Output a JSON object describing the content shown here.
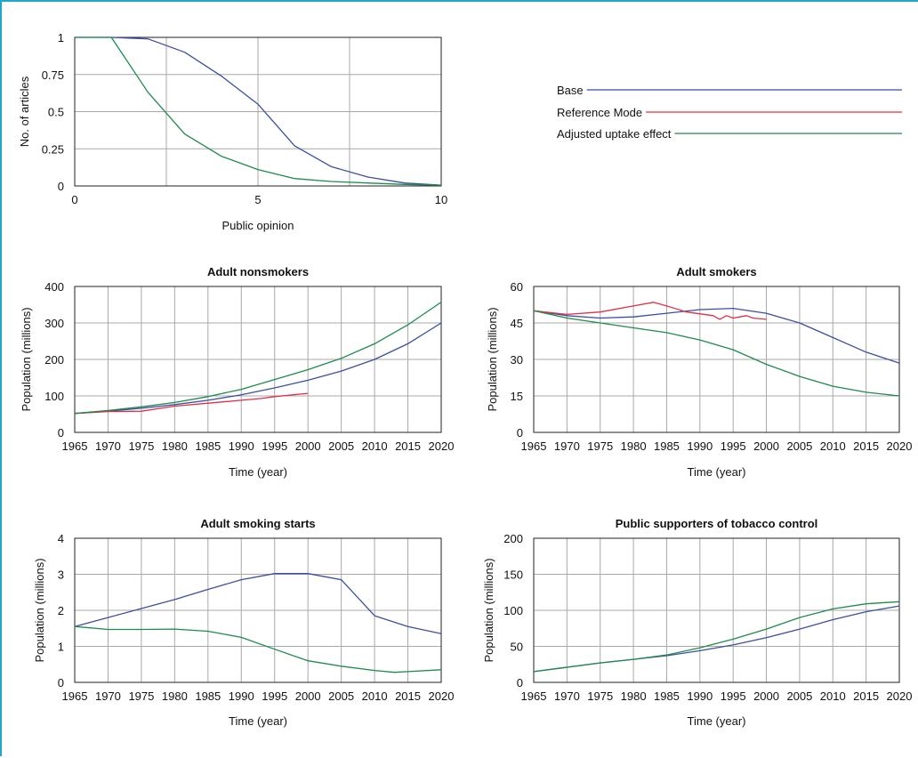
{
  "legend": [
    {
      "label": "Base",
      "color": "#3b4fa0"
    },
    {
      "label": "Reference Mode",
      "color": "#e03048"
    },
    {
      "label": "Adjusted uptake effect",
      "color": "#1f8a4c"
    }
  ],
  "chart_data": [
    {
      "id": "opinion",
      "type": "line",
      "title": "",
      "xlabel": "Public opinion",
      "ylabel": "No. of articles",
      "xlim": [
        0,
        10
      ],
      "ylim": [
        0,
        1
      ],
      "xticks": [
        0,
        5,
        10
      ],
      "xgrid": [
        0,
        2.5,
        5,
        7.5,
        10
      ],
      "yticks": [
        0,
        0.25,
        0.5,
        0.75,
        1
      ],
      "ytick_labels": [
        "0",
        "0.25",
        "0.5",
        "0.75",
        "1"
      ],
      "grid": true,
      "series": [
        {
          "key": "base",
          "x": [
            0,
            1,
            2,
            3,
            4,
            5,
            6,
            7,
            8,
            9,
            10
          ],
          "y": [
            1,
            1,
            0.99,
            0.9,
            0.74,
            0.55,
            0.27,
            0.13,
            0.06,
            0.02,
            0.005
          ]
        },
        {
          "key": "adjusted",
          "x": [
            0,
            1,
            2,
            3,
            4,
            5,
            6,
            7,
            8,
            9,
            10
          ],
          "y": [
            1,
            1,
            0.63,
            0.35,
            0.2,
            0.11,
            0.05,
            0.03,
            0.02,
            0.01,
            0.005
          ]
        }
      ]
    },
    {
      "id": "nonsmokers",
      "type": "line",
      "title": "Adult nonsmokers",
      "xlabel": "Time (year)",
      "ylabel": "Population (millions)",
      "xlim": [
        1965,
        2020
      ],
      "ylim": [
        0,
        400
      ],
      "xticks": [
        1965,
        1970,
        1975,
        1980,
        1985,
        1990,
        1995,
        2000,
        2005,
        2010,
        2015,
        2020
      ],
      "yticks": [
        0,
        100,
        200,
        300,
        400
      ],
      "ytick_labels": [
        "0",
        "100",
        "200",
        "300",
        "400"
      ],
      "grid": true,
      "series": [
        {
          "key": "base",
          "x": [
            1965,
            1970,
            1975,
            1980,
            1985,
            1990,
            1995,
            2000,
            2005,
            2010,
            2015,
            2020
          ],
          "y": [
            52,
            58,
            66,
            76,
            88,
            103,
            122,
            143,
            168,
            200,
            243,
            300
          ]
        },
        {
          "key": "reference",
          "x": [
            1965,
            1970,
            1975,
            1980,
            1985,
            1990,
            1993,
            1995,
            2000
          ],
          "y": [
            52,
            57,
            58,
            72,
            80,
            88,
            93,
            98,
            107
          ]
        },
        {
          "key": "adjusted",
          "x": [
            1965,
            1970,
            1975,
            1980,
            1985,
            1990,
            1995,
            2000,
            2005,
            2010,
            2015,
            2020
          ],
          "y": [
            52,
            60,
            70,
            82,
            98,
            118,
            145,
            172,
            203,
            243,
            295,
            357
          ]
        }
      ]
    },
    {
      "id": "smokers",
      "type": "line",
      "title": "Adult smokers",
      "xlabel": "Time (year)",
      "ylabel": "Population (millions)",
      "xlim": [
        1965,
        2020
      ],
      "ylim": [
        0,
        60
      ],
      "xticks": [
        1965,
        1970,
        1975,
        1980,
        1985,
        1990,
        1995,
        2000,
        2005,
        2010,
        2015,
        2020
      ],
      "yticks": [
        0,
        15,
        30,
        45,
        60
      ],
      "ytick_labels": [
        "0",
        "15",
        "30",
        "45",
        "60"
      ],
      "grid": true,
      "series": [
        {
          "key": "base",
          "x": [
            1965,
            1970,
            1975,
            1980,
            1985,
            1990,
            1995,
            2000,
            2005,
            2010,
            2015,
            2020
          ],
          "y": [
            50,
            48,
            47,
            47.5,
            49,
            50.5,
            51,
            49,
            45,
            39,
            33,
            28.5
          ]
        },
        {
          "key": "reference",
          "x": [
            1965,
            1970,
            1975,
            1980,
            1983,
            1985,
            1988,
            1992,
            1993,
            1994,
            1995,
            1996,
            1997,
            1998,
            2000
          ],
          "y": [
            50,
            48.5,
            49.5,
            52,
            53.5,
            52,
            49.5,
            48,
            46.5,
            48,
            47,
            47.5,
            48,
            47,
            46.5
          ]
        },
        {
          "key": "adjusted",
          "x": [
            1965,
            1970,
            1975,
            1980,
            1985,
            1990,
            1995,
            2000,
            2005,
            2010,
            2015,
            2020
          ],
          "y": [
            50,
            47,
            45,
            43,
            41,
            38,
            34,
            28,
            23,
            19,
            16.5,
            15
          ]
        }
      ]
    },
    {
      "id": "starts",
      "type": "line",
      "title": "Adult smoking starts",
      "xlabel": "Time (year)",
      "ylabel": "Population (millions)",
      "xlim": [
        1965,
        2020
      ],
      "ylim": [
        0,
        4
      ],
      "xticks": [
        1965,
        1970,
        1975,
        1980,
        1985,
        1990,
        1995,
        2000,
        2005,
        2010,
        2015,
        2020
      ],
      "yticks": [
        0,
        1,
        2,
        3,
        4
      ],
      "ytick_labels": [
        "0",
        "1",
        "2",
        "3",
        "4"
      ],
      "grid": true,
      "series": [
        {
          "key": "base",
          "x": [
            1965,
            1970,
            1975,
            1980,
            1985,
            1990,
            1995,
            2000,
            2005,
            2010,
            2015,
            2020
          ],
          "y": [
            1.55,
            1.8,
            2.05,
            2.3,
            2.58,
            2.85,
            3.02,
            3.02,
            2.85,
            1.85,
            1.55,
            1.35
          ]
        },
        {
          "key": "adjusted",
          "x": [
            1965,
            1970,
            1975,
            1980,
            1985,
            1990,
            1995,
            2000,
            2005,
            2010,
            2013,
            2015,
            2020
          ],
          "y": [
            1.55,
            1.47,
            1.47,
            1.48,
            1.42,
            1.25,
            0.92,
            0.6,
            0.45,
            0.33,
            0.28,
            0.3,
            0.35
          ]
        }
      ]
    },
    {
      "id": "supporters",
      "type": "line",
      "title": "Public supporters of tobacco control",
      "xlabel": "Time (year)",
      "ylabel": "Population (millions)",
      "xlim": [
        1965,
        2020
      ],
      "ylim": [
        0,
        200
      ],
      "xticks": [
        1965,
        1970,
        1975,
        1980,
        1985,
        1990,
        1995,
        2000,
        2005,
        2010,
        2015,
        2020
      ],
      "yticks": [
        0,
        50,
        100,
        150,
        200
      ],
      "ytick_labels": [
        "0",
        "50",
        "100",
        "150",
        "200"
      ],
      "grid": true,
      "series": [
        {
          "key": "base",
          "x": [
            1965,
            1970,
            1975,
            1980,
            1985,
            1990,
            1995,
            2000,
            2005,
            2010,
            2015,
            2020
          ],
          "y": [
            15,
            21,
            27,
            32,
            37,
            44,
            52,
            62,
            74,
            87,
            98,
            106
          ]
        },
        {
          "key": "adjusted",
          "x": [
            1965,
            1970,
            1975,
            1980,
            1985,
            1990,
            1995,
            2000,
            2005,
            2010,
            2015,
            2020
          ],
          "y": [
            15,
            21,
            27,
            32,
            38,
            48,
            60,
            74,
            90,
            102,
            109,
            112
          ]
        }
      ]
    }
  ]
}
